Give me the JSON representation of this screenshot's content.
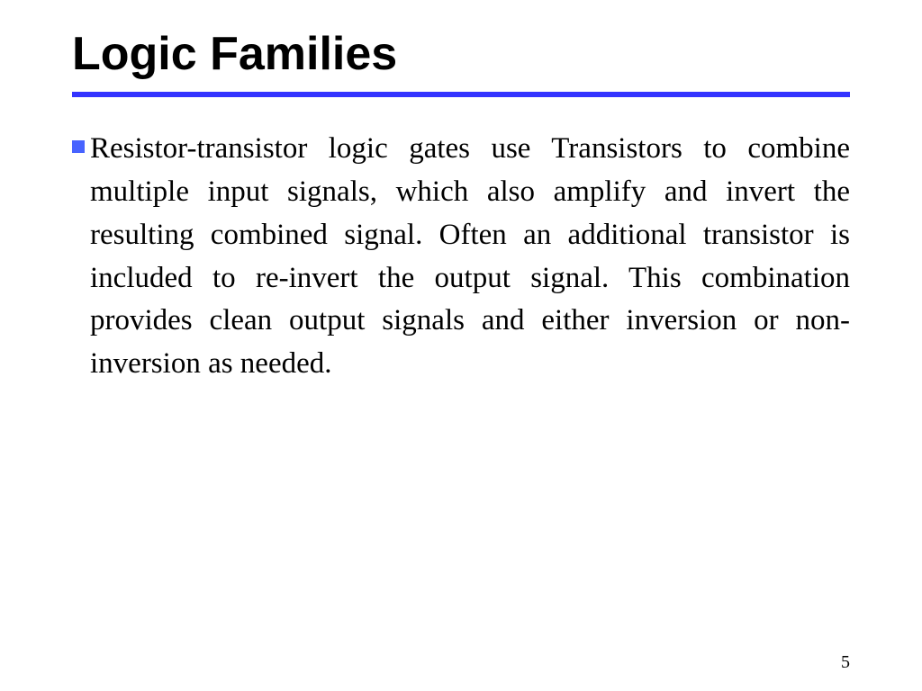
{
  "slide": {
    "title": "Logic Families",
    "body": "Resistor-transistor logic gates use Transistors to combine multiple input signals, which also amplify and invert the resulting combined signal. Often an additional transistor is included to re-invert the output signal. This combination provides clean output signals and either inversion or non-inversion as needed.",
    "page_number": "5",
    "divider_color": "#3333ff",
    "bullet_color": "#4763ff",
    "title_fontsize": 52,
    "body_fontsize": 33,
    "background_color": "#ffffff"
  }
}
